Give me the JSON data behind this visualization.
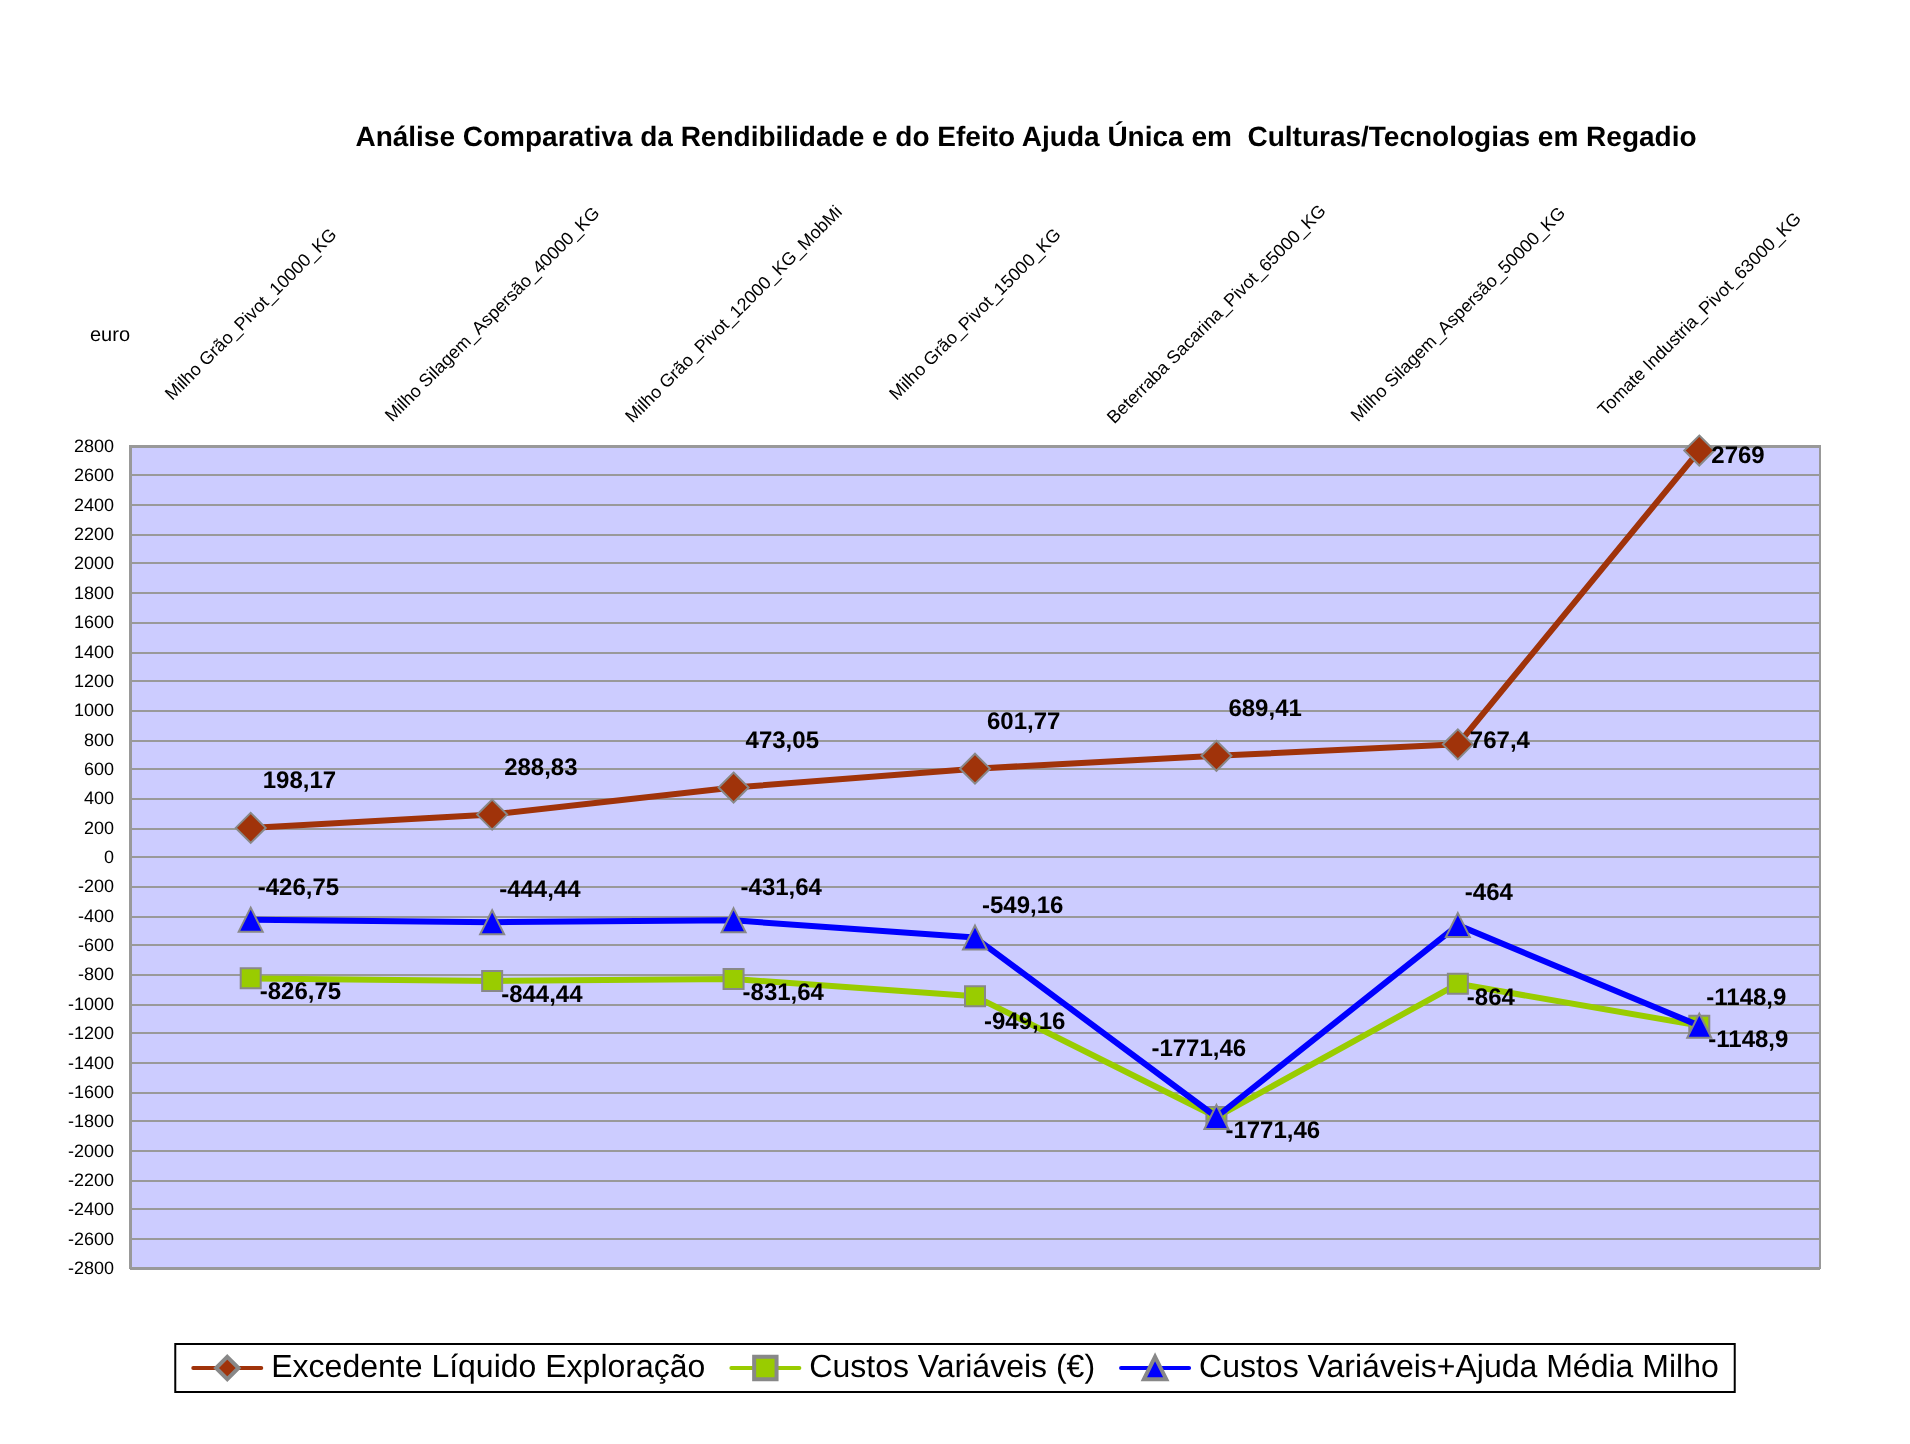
{
  "chart_data": {
    "type": "line",
    "title": "Análise Comparativa da Rendibilidade e do Efeito Ajuda Única em  Culturas/Tecnologias em Regadio",
    "ylabel": "euro",
    "categories": [
      "Milho Grão_Pivot_10000_KG",
      "Milho Silagem_Aspersão_40000_KG",
      "Milho Grão_Pivot_12000_KG_MobMi",
      "Milho Grão_Pivot_15000_KG",
      "Beterraba Sacarina_Pivot_65000_KG",
      "Milho Silagem_Aspersão_50000_KG",
      "Tomate Industria_Pivot_63000_KG"
    ],
    "series": [
      {
        "name": "Excedente Líquido Exploração",
        "color": "#a0330a",
        "marker": "diamond",
        "values": [
          198.17,
          288.83,
          473.05,
          601.77,
          689.41,
          767.4,
          2769
        ],
        "value_labels": [
          "198,17",
          "288,83",
          "473,05",
          "601,77",
          "689,41",
          "767,4",
          "2769"
        ]
      },
      {
        "name": "Custos Variáveis (€)",
        "color": "#99cc00",
        "marker": "square",
        "values": [
          -826.75,
          -844.44,
          -831.64,
          -949.16,
          -1771.46,
          -864,
          -1148.9
        ],
        "value_labels": [
          "-826,75",
          "-844,44",
          "-831,64",
          "-949,16",
          "-1771,46",
          "-864",
          "-1148,9"
        ]
      },
      {
        "name": "Custos Variáveis+Ajuda Média Milho",
        "color": "#0000ff",
        "marker": "triangle",
        "values": [
          -426.75,
          -444.44,
          -431.64,
          -549.16,
          -1771.46,
          -464,
          -1148.9
        ],
        "value_labels": [
          "-426,75",
          "-444,44",
          "-431,64",
          "-549,16",
          "-1771,46",
          "-464",
          "-1148,9"
        ]
      }
    ],
    "ylim": [
      -2800,
      2800
    ],
    "yticks": [
      -2800,
      -2600,
      -2400,
      -2200,
      -2000,
      -1800,
      -1600,
      -1400,
      -1200,
      -1000,
      -800,
      -600,
      -400,
      -200,
      0,
      200,
      400,
      600,
      800,
      1000,
      1200,
      1400,
      1600,
      1800,
      2000,
      2200,
      2400,
      2600,
      2800
    ],
    "grid": "y",
    "legend": "bottom"
  }
}
